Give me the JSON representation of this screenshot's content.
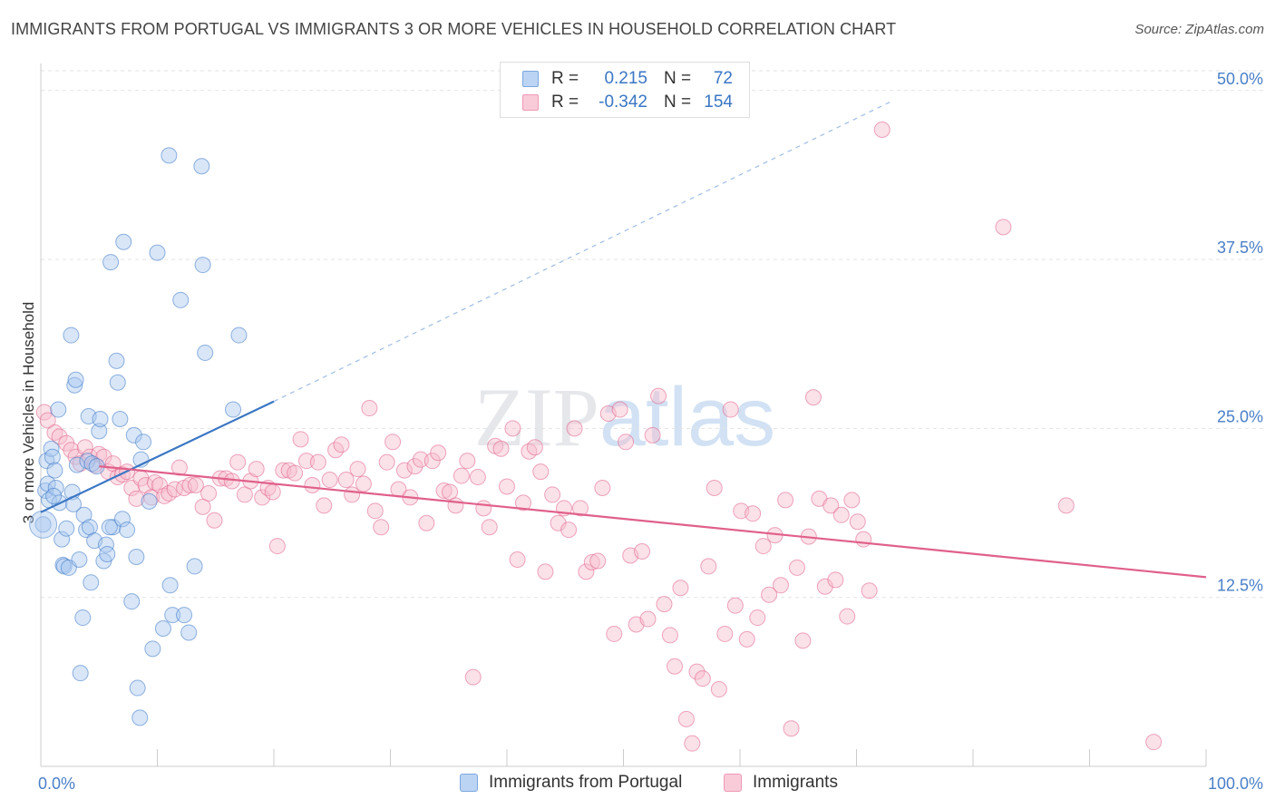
{
  "title": "IMMIGRANTS FROM PORTUGAL VS IMMIGRANTS 3 OR MORE VEHICLES IN HOUSEHOLD CORRELATION CHART",
  "source": "Source: ZipAtlas.com",
  "watermark": {
    "part1": "ZIP",
    "part2": "atlas"
  },
  "legend": {
    "rows": [
      {
        "r_label": "R =",
        "r_value": "0.215",
        "n_label": "N =",
        "n_value": "72",
        "color": "#8ab4e8"
      },
      {
        "r_label": "R =",
        "r_value": "-0.342",
        "n_label": "N =",
        "n_value": "154",
        "color": "#f0a0ba"
      }
    ]
  },
  "bottom_legend": [
    {
      "label": "Immigrants from Portugal",
      "color": "#8ab4e8"
    },
    {
      "label": "Immigrants",
      "color": "#f0a0ba"
    }
  ],
  "chart_data": {
    "type": "scatter",
    "xlabel": "",
    "ylabel": "3 or more Vehicles in Household",
    "xlim": [
      0,
      100
    ],
    "ylim": [
      0,
      52
    ],
    "x_tick_labels": [
      {
        "value": 0,
        "label": "0.0%"
      },
      {
        "value": 100,
        "label": "100.0%"
      }
    ],
    "y_tick_labels": [
      {
        "value": 12.5,
        "label": "12.5%"
      },
      {
        "value": 25.0,
        "label": "25.0%"
      },
      {
        "value": 37.5,
        "label": "37.5%"
      },
      {
        "value": 50.0,
        "label": "50.0%"
      }
    ],
    "grid": true,
    "legend_placement": "top-center",
    "series": [
      {
        "name": "Immigrants from Portugal",
        "color": "#3a76c4",
        "fill": "#a9c8ef",
        "trend": {
          "x": [
            0,
            20
          ],
          "y": [
            18.8,
            27.0
          ],
          "dashed_extension": {
            "x": [
              20,
              73
            ],
            "y": [
              27.0,
              49.2
            ]
          }
        },
        "points": [
          [
            0.2,
            17.9
          ],
          [
            0.4,
            20.4
          ],
          [
            0.5,
            22.6
          ],
          [
            0.6,
            20.9
          ],
          [
            0.7,
            19.7
          ],
          [
            0.9,
            23.5
          ],
          [
            1.0,
            22.9
          ],
          [
            1.2,
            21.9
          ],
          [
            1.3,
            20.6
          ],
          [
            1.5,
            26.4
          ],
          [
            1.6,
            19.5
          ],
          [
            1.8,
            16.8
          ],
          [
            1.9,
            14.9
          ],
          [
            2.0,
            14.8
          ],
          [
            2.2,
            17.6
          ],
          [
            2.4,
            14.7
          ],
          [
            2.6,
            31.9
          ],
          [
            2.7,
            20.3
          ],
          [
            2.8,
            19.4
          ],
          [
            2.9,
            28.2
          ],
          [
            3.1,
            22.3
          ],
          [
            3.3,
            15.3
          ],
          [
            3.4,
            6.9
          ],
          [
            3.6,
            11.0
          ],
          [
            3.7,
            18.6
          ],
          [
            3.9,
            17.5
          ],
          [
            4.0,
            22.6
          ],
          [
            4.1,
            25.9
          ],
          [
            4.2,
            17.7
          ],
          [
            4.3,
            13.6
          ],
          [
            4.4,
            22.4
          ],
          [
            4.6,
            16.7
          ],
          [
            4.8,
            22.2
          ],
          [
            5.0,
            24.8
          ],
          [
            5.1,
            25.7
          ],
          [
            5.4,
            15.2
          ],
          [
            5.6,
            16.4
          ],
          [
            5.7,
            15.7
          ],
          [
            6.0,
            37.3
          ],
          [
            6.2,
            17.7
          ],
          [
            6.5,
            30.0
          ],
          [
            6.6,
            28.4
          ],
          [
            6.8,
            25.7
          ],
          [
            7.0,
            18.3
          ],
          [
            7.1,
            38.8
          ],
          [
            7.4,
            17.5
          ],
          [
            7.8,
            12.2
          ],
          [
            8.0,
            24.5
          ],
          [
            8.2,
            15.5
          ],
          [
            8.3,
            5.8
          ],
          [
            8.5,
            3.6
          ],
          [
            8.6,
            22.7
          ],
          [
            8.8,
            24.0
          ],
          [
            9.3,
            19.6
          ],
          [
            9.6,
            8.7
          ],
          [
            10.0,
            38.0
          ],
          [
            10.5,
            10.2
          ],
          [
            11.0,
            45.2
          ],
          [
            11.1,
            13.4
          ],
          [
            11.3,
            11.2
          ],
          [
            12.0,
            34.5
          ],
          [
            12.3,
            11.2
          ],
          [
            12.7,
            9.9
          ],
          [
            13.2,
            14.8
          ],
          [
            13.8,
            44.4
          ],
          [
            13.9,
            37.1
          ],
          [
            14.1,
            30.6
          ],
          [
            16.5,
            26.4
          ],
          [
            17.0,
            31.9
          ],
          [
            3.0,
            28.6
          ],
          [
            1.1,
            20.0
          ],
          [
            5.9,
            17.7
          ]
        ]
      },
      {
        "name": "Immigrants",
        "color": "#e0608a",
        "fill": "#f6bccd",
        "trend": {
          "x": [
            5,
            100
          ],
          "y": [
            22.2,
            14.0
          ]
        },
        "points": [
          [
            0.3,
            26.2
          ],
          [
            0.6,
            25.6
          ],
          [
            1.2,
            24.7
          ],
          [
            1.6,
            24.4
          ],
          [
            2.2,
            23.9
          ],
          [
            2.6,
            23.4
          ],
          [
            3.0,
            22.9
          ],
          [
            3.4,
            22.4
          ],
          [
            3.8,
            23.6
          ],
          [
            4.2,
            22.9
          ],
          [
            4.6,
            22.3
          ],
          [
            5.0,
            23.1
          ],
          [
            5.4,
            22.9
          ],
          [
            5.8,
            21.8
          ],
          [
            6.2,
            22.4
          ],
          [
            6.6,
            21.4
          ],
          [
            7.0,
            21.6
          ],
          [
            7.4,
            21.8
          ],
          [
            7.8,
            20.6
          ],
          [
            8.2,
            19.8
          ],
          [
            8.6,
            21.3
          ],
          [
            9.0,
            20.8
          ],
          [
            9.5,
            19.9
          ],
          [
            9.8,
            21.0
          ],
          [
            10.2,
            20.8
          ],
          [
            10.6,
            20.0
          ],
          [
            11.0,
            20.2
          ],
          [
            11.5,
            20.5
          ],
          [
            11.9,
            22.1
          ],
          [
            12.3,
            20.6
          ],
          [
            12.8,
            20.8
          ],
          [
            13.3,
            20.8
          ],
          [
            13.9,
            19.2
          ],
          [
            14.4,
            20.2
          ],
          [
            14.9,
            18.2
          ],
          [
            15.4,
            21.3
          ],
          [
            15.9,
            21.3
          ],
          [
            16.4,
            21.1
          ],
          [
            16.9,
            22.5
          ],
          [
            17.5,
            20.1
          ],
          [
            18.0,
            21.1
          ],
          [
            18.5,
            22.0
          ],
          [
            19.0,
            19.9
          ],
          [
            19.5,
            20.6
          ],
          [
            19.9,
            20.3
          ],
          [
            20.3,
            16.3
          ],
          [
            20.8,
            21.9
          ],
          [
            21.3,
            21.9
          ],
          [
            21.8,
            21.7
          ],
          [
            22.3,
            24.2
          ],
          [
            22.8,
            22.6
          ],
          [
            23.3,
            20.8
          ],
          [
            23.8,
            22.5
          ],
          [
            24.3,
            19.3
          ],
          [
            24.8,
            21.2
          ],
          [
            25.3,
            23.4
          ],
          [
            25.8,
            23.8
          ],
          [
            26.2,
            21.2
          ],
          [
            26.7,
            20.1
          ],
          [
            27.2,
            22.0
          ],
          [
            27.7,
            20.9
          ],
          [
            28.2,
            26.5
          ],
          [
            28.7,
            18.9
          ],
          [
            29.2,
            17.7
          ],
          [
            29.7,
            22.5
          ],
          [
            30.2,
            24.0
          ],
          [
            30.7,
            20.5
          ],
          [
            31.2,
            21.9
          ],
          [
            31.7,
            19.9
          ],
          [
            32.1,
            22.2
          ],
          [
            32.6,
            22.7
          ],
          [
            33.1,
            18.0
          ],
          [
            33.6,
            22.6
          ],
          [
            34.1,
            23.2
          ],
          [
            34.6,
            20.4
          ],
          [
            35.1,
            20.3
          ],
          [
            35.6,
            19.3
          ],
          [
            36.1,
            21.5
          ],
          [
            36.6,
            22.6
          ],
          [
            37.1,
            6.6
          ],
          [
            37.5,
            21.4
          ],
          [
            38.0,
            19.1
          ],
          [
            38.5,
            17.7
          ],
          [
            39.0,
            23.7
          ],
          [
            39.5,
            23.5
          ],
          [
            40.0,
            20.7
          ],
          [
            40.5,
            25.0
          ],
          [
            40.9,
            15.3
          ],
          [
            41.4,
            19.5
          ],
          [
            41.9,
            23.3
          ],
          [
            42.4,
            23.6
          ],
          [
            42.9,
            21.8
          ],
          [
            43.3,
            14.4
          ],
          [
            43.9,
            20.1
          ],
          [
            44.4,
            18.0
          ],
          [
            44.9,
            19.1
          ],
          [
            45.3,
            17.5
          ],
          [
            45.8,
            25.0
          ],
          [
            46.3,
            19.1
          ],
          [
            46.8,
            14.4
          ],
          [
            47.3,
            15.1
          ],
          [
            47.8,
            15.2
          ],
          [
            48.2,
            20.6
          ],
          [
            48.7,
            26.1
          ],
          [
            49.2,
            9.8
          ],
          [
            49.7,
            26.4
          ],
          [
            50.2,
            24.0
          ],
          [
            50.6,
            15.6
          ],
          [
            51.1,
            10.5
          ],
          [
            51.6,
            15.9
          ],
          [
            52.1,
            10.9
          ],
          [
            52.5,
            24.5
          ],
          [
            53.0,
            27.4
          ],
          [
            53.5,
            12.0
          ],
          [
            54.0,
            9.7
          ],
          [
            54.4,
            7.4
          ],
          [
            54.9,
            13.2
          ],
          [
            55.4,
            3.5
          ],
          [
            55.9,
            1.7
          ],
          [
            56.3,
            7.0
          ],
          [
            56.8,
            6.5
          ],
          [
            57.3,
            14.8
          ],
          [
            57.8,
            20.6
          ],
          [
            58.2,
            5.7
          ],
          [
            58.7,
            9.8
          ],
          [
            59.2,
            26.4
          ],
          [
            59.6,
            11.9
          ],
          [
            60.1,
            18.9
          ],
          [
            60.6,
            9.4
          ],
          [
            61.1,
            18.7
          ],
          [
            61.5,
            11.0
          ],
          [
            62.0,
            16.3
          ],
          [
            62.5,
            12.7
          ],
          [
            63.0,
            17.1
          ],
          [
            63.5,
            13.4
          ],
          [
            63.9,
            19.7
          ],
          [
            64.4,
            2.8
          ],
          [
            64.9,
            14.7
          ],
          [
            65.4,
            9.3
          ],
          [
            65.9,
            17.0
          ],
          [
            66.3,
            27.3
          ],
          [
            66.8,
            19.8
          ],
          [
            67.3,
            13.3
          ],
          [
            67.8,
            19.3
          ],
          [
            68.2,
            13.8
          ],
          [
            68.7,
            18.6
          ],
          [
            69.2,
            11.1
          ],
          [
            69.6,
            19.7
          ],
          [
            70.1,
            18.1
          ],
          [
            70.6,
            16.8
          ],
          [
            71.1,
            13.0
          ],
          [
            72.2,
            47.1
          ],
          [
            82.6,
            39.9
          ],
          [
            88.0,
            19.3
          ],
          [
            95.5,
            1.8
          ]
        ]
      }
    ]
  }
}
